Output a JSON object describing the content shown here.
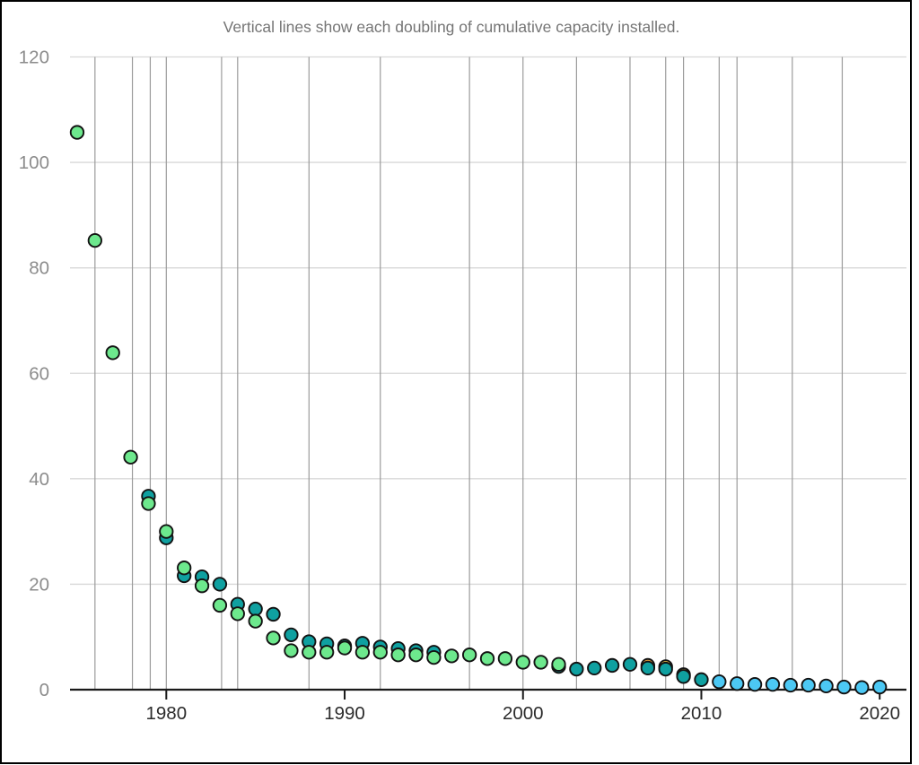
{
  "chart_data": {
    "type": "scatter",
    "title": "Vertical lines show each doubling of cumulative capacity installed.",
    "xlabel": "",
    "ylabel": "",
    "xlim": [
      1974.6,
      2021.5
    ],
    "ylim": [
      0,
      120
    ],
    "x_ticks": [
      {
        "value": 1980,
        "label": "1980"
      },
      {
        "value": 1990,
        "label": "1990"
      },
      {
        "value": 2000,
        "label": "2000"
      },
      {
        "value": 2010,
        "label": "2010"
      },
      {
        "value": 2020,
        "label": "2020"
      }
    ],
    "y_ticks": [
      {
        "value": 0,
        "label": "0"
      },
      {
        "value": 20,
        "label": "20"
      },
      {
        "value": 40,
        "label": "40"
      },
      {
        "value": 60,
        "label": "60"
      },
      {
        "value": 80,
        "label": "80"
      },
      {
        "value": 100,
        "label": "100"
      },
      {
        "value": 120,
        "label": "120"
      }
    ],
    "grid": {
      "horizontal": true,
      "vertical": "doubling-lines",
      "legend": "none"
    },
    "doubling_line_years": [
      1976.0,
      1978.1,
      1979.1,
      1980.0,
      1983.1,
      1984.0,
      1988.0,
      1992.0,
      1997.0,
      2000.0,
      2003.0,
      2006.0,
      2008.0,
      2009.0,
      2011.0,
      2012.0,
      2015.1,
      2017.9
    ],
    "series": [
      {
        "name": "yellow-source",
        "color": "#fdd24a",
        "points": [
          [
            2008,
            4.35
          ],
          [
            2009,
            2.85
          ]
        ]
      },
      {
        "name": "orange-source",
        "color": "#f4a53d",
        "points": [
          [
            2007,
            4.6
          ]
        ]
      },
      {
        "name": "teal-source",
        "color": "#0fa0a0",
        "points": [
          [
            1979,
            36.7
          ],
          [
            1980,
            28.8
          ],
          [
            1981,
            21.6
          ],
          [
            1982,
            21.4
          ],
          [
            1983,
            20.0
          ],
          [
            1984,
            16.2
          ],
          [
            1985,
            15.3
          ],
          [
            1986,
            14.3
          ],
          [
            1987,
            10.4
          ],
          [
            1988,
            9.1
          ],
          [
            1989,
            8.7
          ],
          [
            1990,
            8.3
          ],
          [
            1991,
            8.8
          ],
          [
            1992,
            8.1
          ],
          [
            1993,
            7.8
          ],
          [
            1994,
            7.4
          ],
          [
            1995,
            7.1
          ],
          [
            2002,
            4.4
          ],
          [
            2003,
            3.9
          ],
          [
            2004,
            4.1
          ],
          [
            2005,
            4.6
          ],
          [
            2006,
            4.8
          ],
          [
            2007,
            4.1
          ],
          [
            2008,
            3.9
          ],
          [
            2009,
            2.5
          ],
          [
            2010,
            1.9
          ]
        ]
      },
      {
        "name": "green-source",
        "color": "#6de88d",
        "points": [
          [
            1975,
            105.7
          ],
          [
            1976,
            85.2
          ],
          [
            1977,
            63.9
          ],
          [
            1978,
            44.1
          ],
          [
            1979,
            35.3
          ],
          [
            1980,
            30.0
          ],
          [
            1981,
            23.1
          ],
          [
            1982,
            19.7
          ],
          [
            1983,
            16.0
          ],
          [
            1984,
            14.4
          ],
          [
            1985,
            13.0
          ],
          [
            1986,
            9.8
          ],
          [
            1987,
            7.4
          ],
          [
            1988,
            7.1
          ],
          [
            1989,
            7.1
          ],
          [
            1990,
            7.9
          ],
          [
            1991,
            7.1
          ],
          [
            1992,
            7.1
          ],
          [
            1993,
            6.6
          ],
          [
            1994,
            6.6
          ],
          [
            1995,
            6.1
          ],
          [
            1996,
            6.4
          ],
          [
            1997,
            6.6
          ],
          [
            1998,
            5.9
          ],
          [
            1999,
            5.9
          ],
          [
            2000,
            5.2
          ],
          [
            2001,
            5.2
          ],
          [
            2002,
            4.8
          ]
        ]
      },
      {
        "name": "blue-source",
        "color": "#4cc8f4",
        "points": [
          [
            2011,
            1.5
          ],
          [
            2012,
            1.15
          ],
          [
            2013,
            1.0
          ],
          [
            2014,
            1.0
          ],
          [
            2015,
            0.85
          ],
          [
            2016,
            0.85
          ],
          [
            2017,
            0.7
          ],
          [
            2018,
            0.5
          ],
          [
            2019,
            0.4
          ],
          [
            2020,
            0.5
          ]
        ]
      }
    ],
    "styles": {
      "point_radius": 7.2,
      "point_stroke_color": "#121212",
      "point_stroke_width": 1.9,
      "axis_color": "#1a1a1a",
      "axis_width": 2.2,
      "tick_length": 11,
      "h_grid_color": "#d8d8d8",
      "doubling_line_color": "#9b9b9b",
      "title_color": "#757575",
      "y_tick_label_color": "#8c8c8c",
      "x_tick_label_color": "#2b2b2b",
      "background": "#ffffff",
      "frame_color": "#000000"
    }
  }
}
